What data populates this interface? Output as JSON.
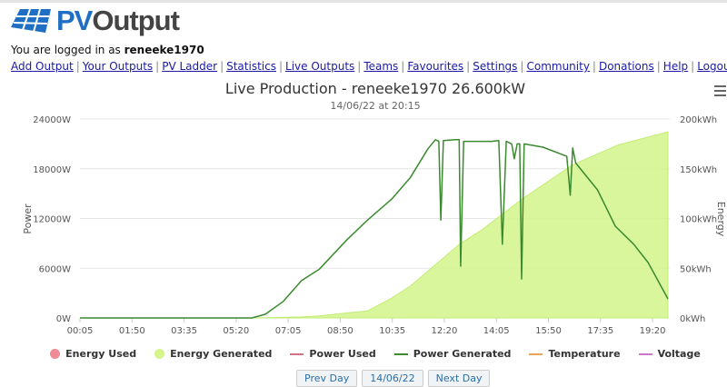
{
  "logo": {
    "pv": "PV",
    "output": "Output"
  },
  "login": {
    "prefix": "You are logged in as ",
    "user": "reneeke1970"
  },
  "nav": [
    "Add Output",
    "Your Outputs",
    "PV Ladder",
    "Statistics",
    "Live Outputs",
    "Teams",
    "Favourites",
    "Settings",
    "Community",
    "Donations",
    "Help",
    "Logout"
  ],
  "chart_data": {
    "type": "line",
    "title": "Live Production - reneeke1970 26.600kW",
    "subtitle": "14/06/22 at 20:15",
    "ylabel": "Power",
    "y2label": "Energy",
    "ylim": [
      0,
      24000
    ],
    "y2lim": [
      0,
      200
    ],
    "yticks": [
      "0W",
      "6000W",
      "12000W",
      "18000W",
      "24000W"
    ],
    "y2ticks": [
      "0kWh",
      "50kWh",
      "100kWh",
      "150kWh",
      "200kWh"
    ],
    "xticks": [
      "00:05",
      "01:50",
      "03:35",
      "05:20",
      "07:05",
      "08:50",
      "10:35",
      "12:20",
      "14:05",
      "15:50",
      "17:35",
      "19:20"
    ],
    "grid": true,
    "legend_position": "bottom",
    "colors": {
      "power_generated": "#3a8a2e",
      "energy_generated": "#d4f58c",
      "energy_used": "#f08c96",
      "power_used": "#d9707f",
      "temperature": "#e8a65a",
      "voltage": "#cc77cc"
    },
    "legend": [
      {
        "label": "Energy Used",
        "kind": "dot",
        "color": "#f08c96"
      },
      {
        "label": "Energy Generated",
        "kind": "dot",
        "color": "#d4f58c"
      },
      {
        "label": "Power Used",
        "kind": "line",
        "color": "#d9707f"
      },
      {
        "label": "Power Generated",
        "kind": "line",
        "color": "#3a8a2e"
      },
      {
        "label": "Temperature",
        "kind": "line",
        "color": "#e8a65a"
      },
      {
        "label": "Voltage",
        "kind": "line",
        "color": "#cc77cc"
      }
    ],
    "power_generated": [
      [
        "00:05",
        0
      ],
      [
        "05:52",
        0
      ],
      [
        "06:19",
        450
      ],
      [
        "06:55",
        2000
      ],
      [
        "07:32",
        4500
      ],
      [
        "08:08",
        5900
      ],
      [
        "09:03",
        9400
      ],
      [
        "09:45",
        11800
      ],
      [
        "10:34",
        14350
      ],
      [
        "11:11",
        16900
      ],
      [
        "11:47",
        20400
      ],
      [
        "12:02",
        21500
      ],
      [
        "12:09",
        21300
      ],
      [
        "12:13",
        11800
      ],
      [
        "12:18",
        21400
      ],
      [
        "12:42",
        21500
      ],
      [
        "12:50",
        21500
      ],
      [
        "12:53",
        6250
      ],
      [
        "12:59",
        21300
      ],
      [
        "13:55",
        21300
      ],
      [
        "14:10",
        21400
      ],
      [
        "14:17",
        8900
      ],
      [
        "14:25",
        21300
      ],
      [
        "14:36",
        21000
      ],
      [
        "14:41",
        19200
      ],
      [
        "14:47",
        21000
      ],
      [
        "14:52",
        21000
      ],
      [
        "14:56",
        4700
      ],
      [
        "15:01",
        21000
      ],
      [
        "15:39",
        20600
      ],
      [
        "16:27",
        19500
      ],
      [
        "16:34",
        14800
      ],
      [
        "16:39",
        20500
      ],
      [
        "16:45",
        18700
      ],
      [
        "17:29",
        15450
      ],
      [
        "18:05",
        11070
      ],
      [
        "18:42",
        8900
      ],
      [
        "19:11",
        6700
      ],
      [
        "19:51",
        2300
      ]
    ],
    "energy_generated": [
      [
        "00:05",
        0
      ],
      [
        "05:52",
        0
      ],
      [
        "07:32",
        1
      ],
      [
        "08:08",
        2
      ],
      [
        "09:03",
        5
      ],
      [
        "09:45",
        7
      ],
      [
        "10:34",
        20
      ],
      [
        "11:11",
        32
      ],
      [
        "11:47",
        47
      ],
      [
        "12:50",
        74
      ],
      [
        "13:37",
        89
      ],
      [
        "14:58",
        120
      ],
      [
        "16:39",
        154
      ],
      [
        "18:11",
        174
      ],
      [
        "19:51",
        187
      ]
    ]
  },
  "buttons": [
    "Prev Day",
    "14/06/22",
    "Next Day"
  ]
}
